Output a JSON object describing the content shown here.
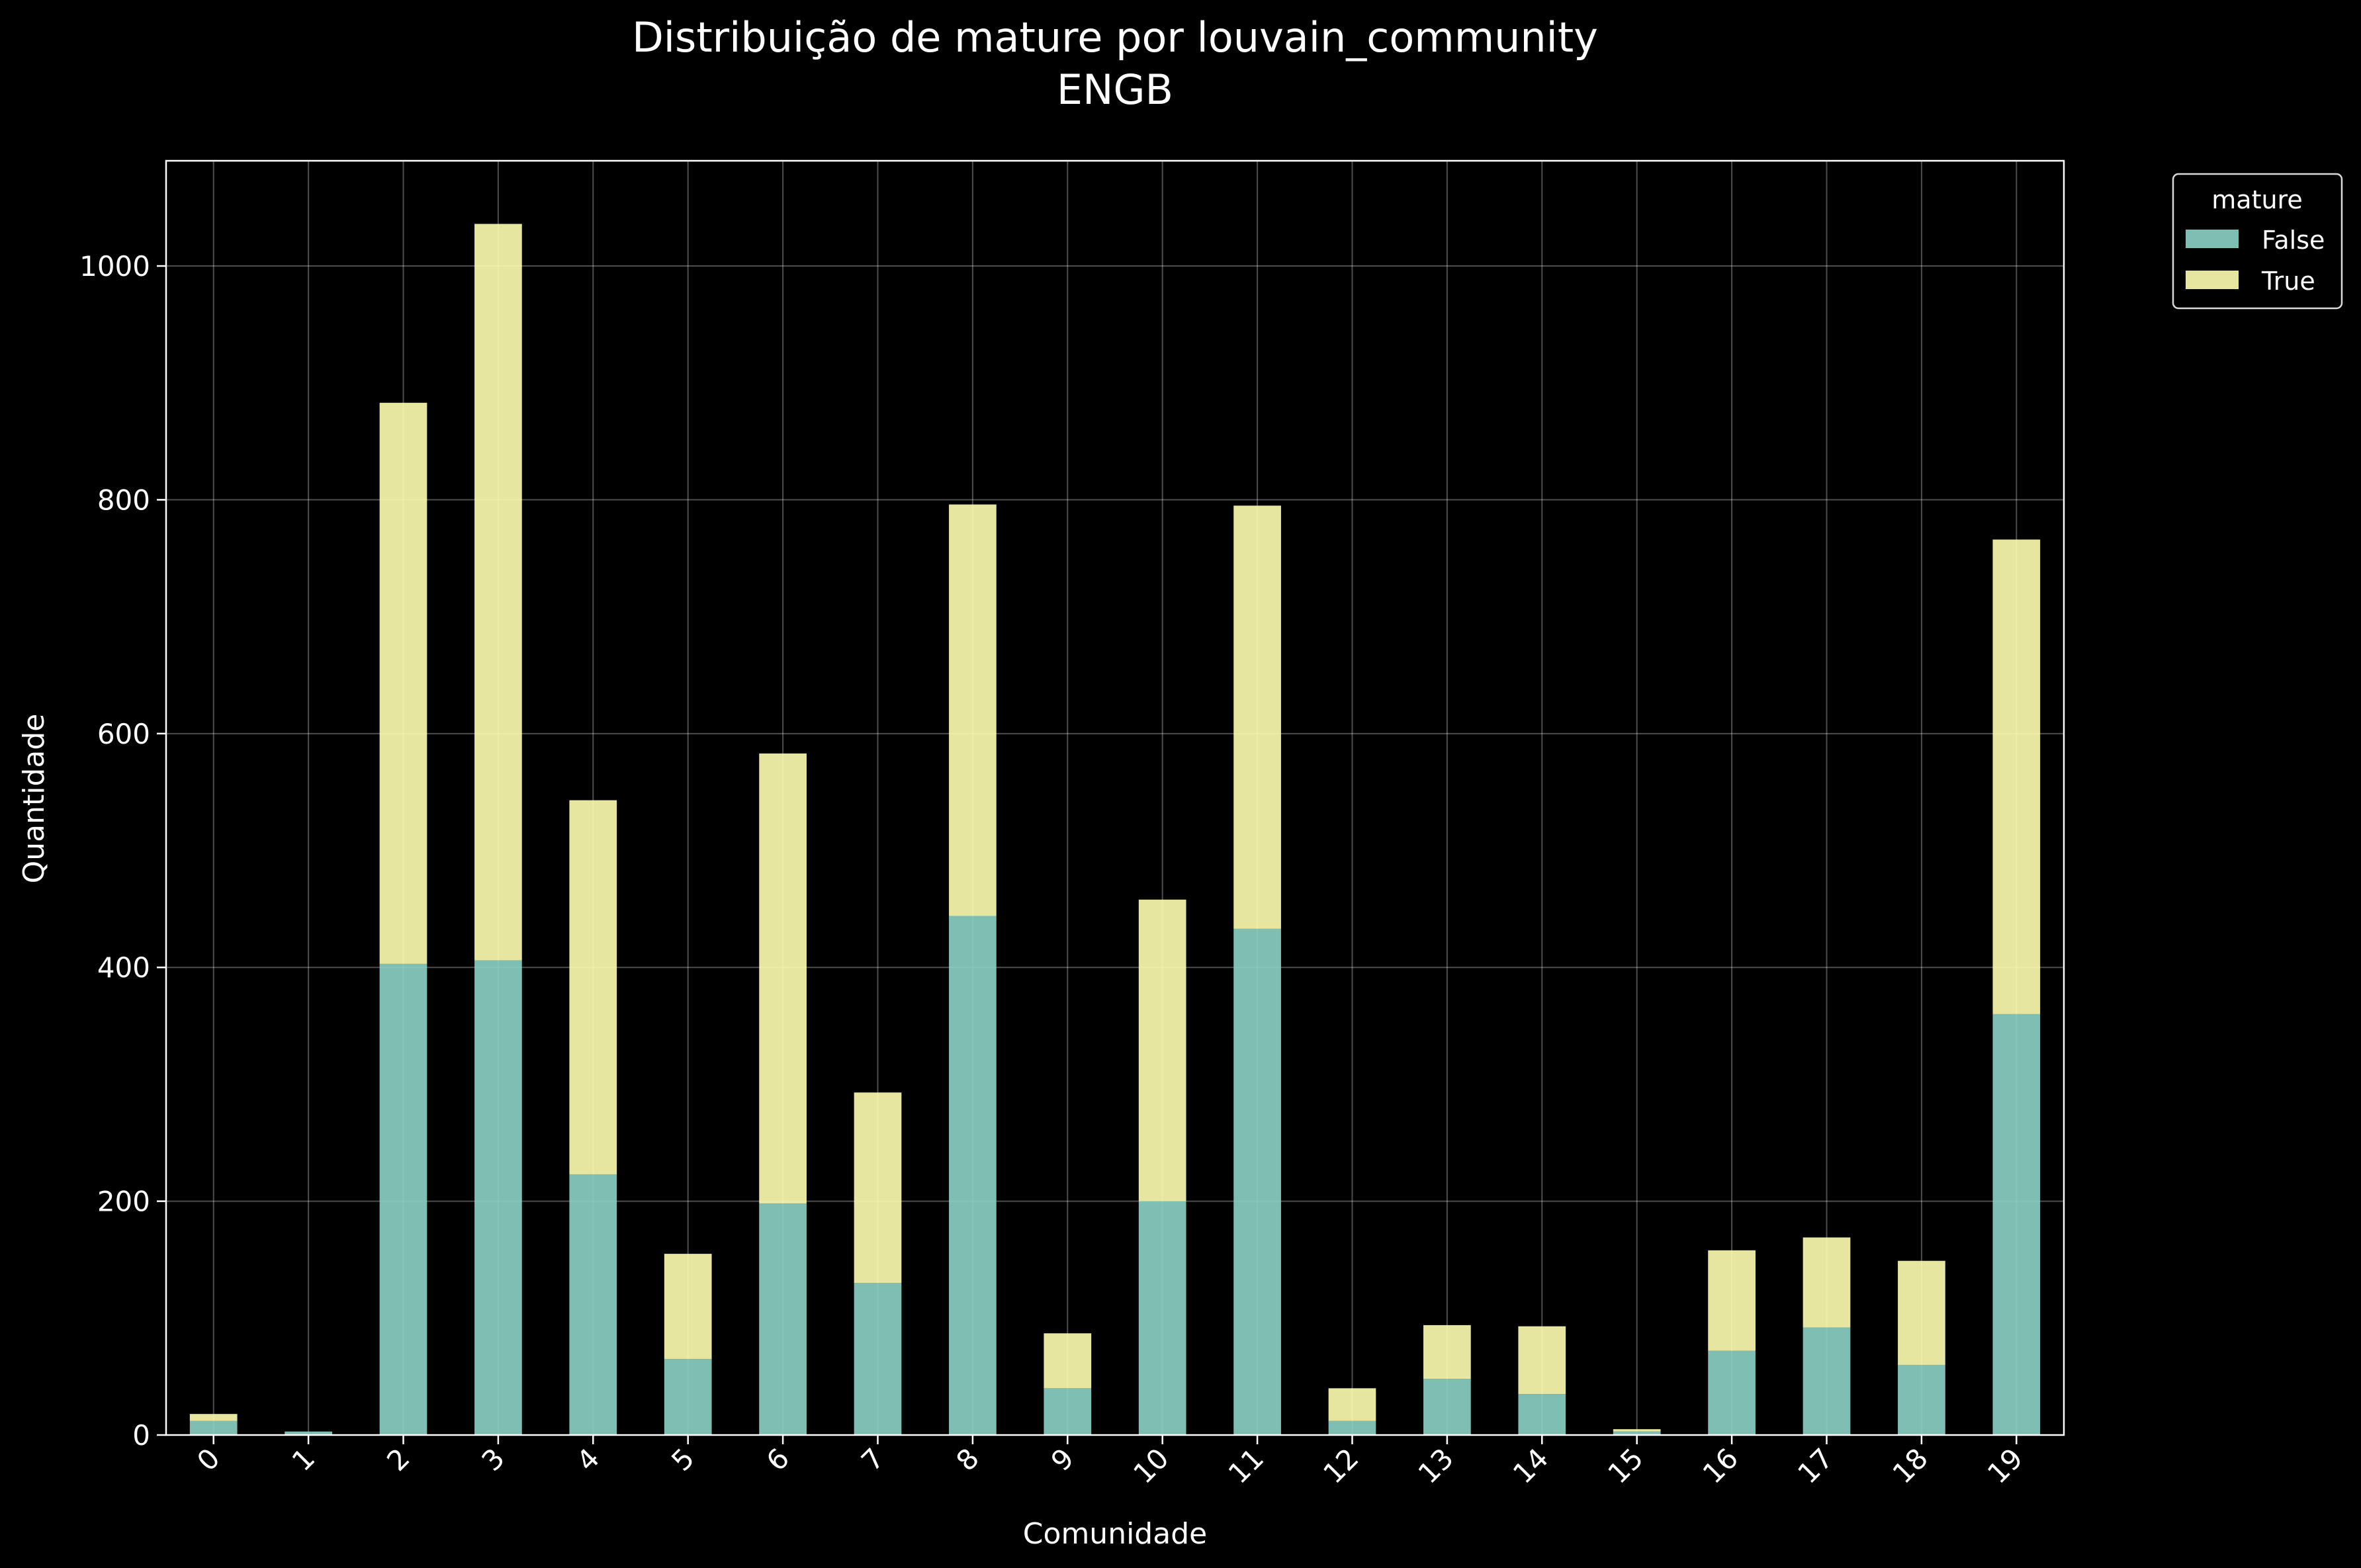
{
  "chart_data": {
    "type": "bar",
    "stacked": true,
    "title": "Distribuição de mature por louvain_community",
    "subtitle": "ENGB",
    "xlabel": "Comunidade",
    "ylabel": "Quantidade",
    "categories": [
      "0",
      "1",
      "2",
      "3",
      "4",
      "5",
      "6",
      "7",
      "8",
      "9",
      "10",
      "11",
      "12",
      "13",
      "14",
      "15",
      "16",
      "17",
      "18",
      "19"
    ],
    "series": [
      {
        "name": "False",
        "color": "#8dd3c7",
        "values": [
          12,
          3,
          403,
          406,
          223,
          65,
          198,
          130,
          444,
          40,
          200,
          433,
          12,
          48,
          35,
          3,
          72,
          92,
          60,
          360
        ]
      },
      {
        "name": "True",
        "color": "#ffffb3",
        "values": [
          6,
          0,
          480,
          630,
          320,
          90,
          385,
          163,
          352,
          47,
          258,
          362,
          28,
          46,
          58,
          2,
          86,
          77,
          89,
          406
        ]
      }
    ],
    "ylim": [
      0,
      1090
    ],
    "yticks": [
      0,
      200,
      400,
      600,
      800,
      1000
    ],
    "grid": true,
    "legend": {
      "title": "mature",
      "position": "upper-right-outside"
    },
    "bar_alpha": 0.9
  }
}
